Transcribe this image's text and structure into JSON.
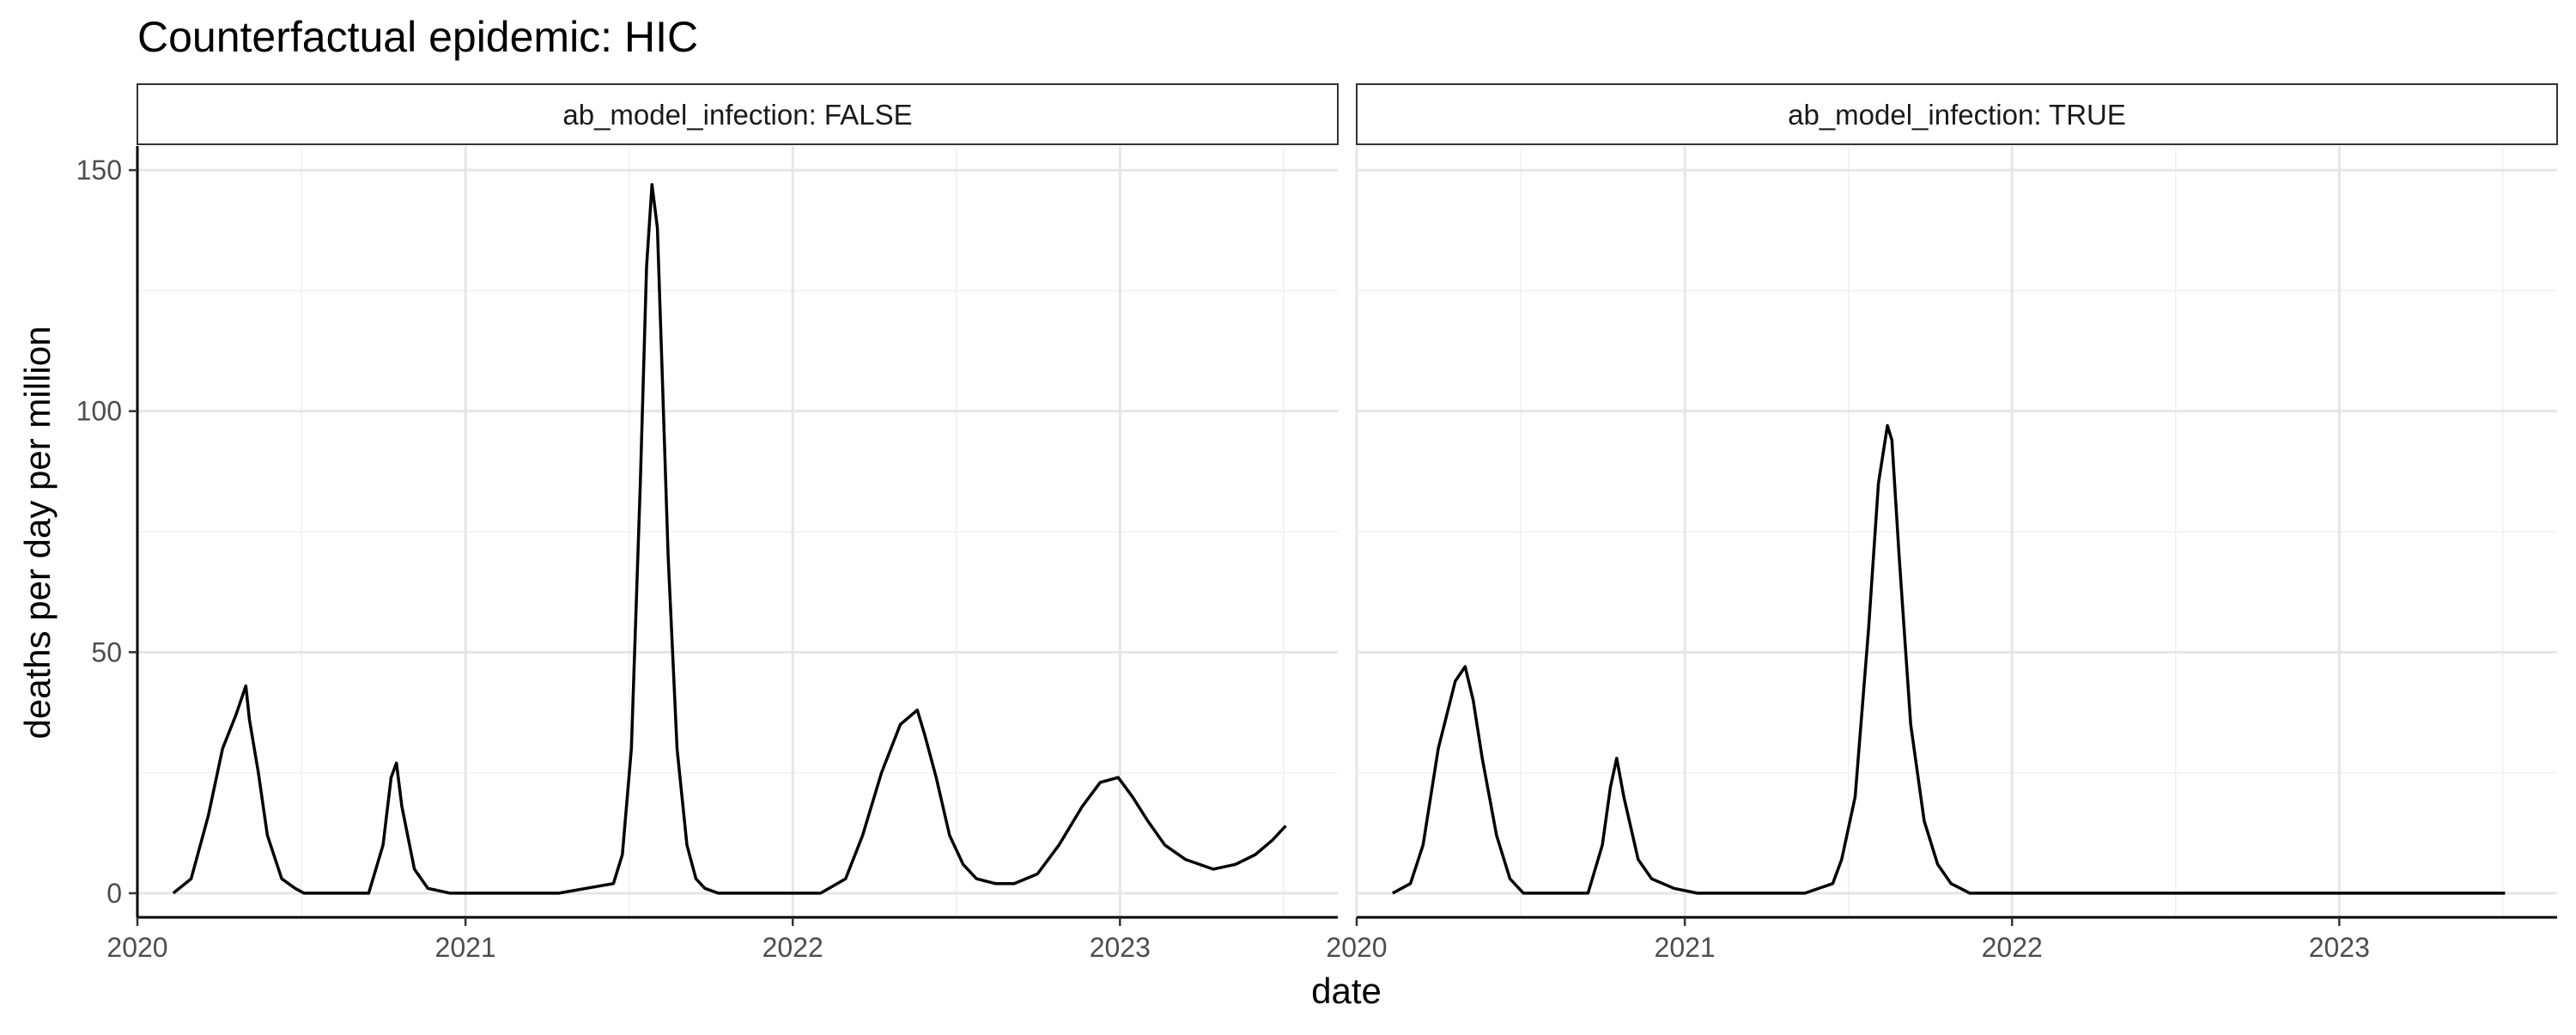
{
  "chart_data": {
    "type": "line",
    "title": "Counterfactual epidemic: HIC",
    "xlabel": "date",
    "ylabel": "deaths per day per million",
    "xlim": [
      "2020-01-01",
      "2023-09-01"
    ],
    "ylim": [
      -5,
      155
    ],
    "x_ticks": [
      "2020-01-01",
      "2021-01-01",
      "2022-01-01",
      "2023-01-01"
    ],
    "x_tick_labels": [
      "2020",
      "2021",
      "2022",
      "2023"
    ],
    "y_ticks": [
      0,
      50,
      100,
      150
    ],
    "y_tick_labels": [
      "0",
      "50",
      "100",
      "150"
    ],
    "grid": true,
    "line_color": "#000000",
    "facets": [
      {
        "strip_label": "ab_model_infection: FALSE",
        "x": [
          "2020-02-10",
          "2020-03-01",
          "2020-03-20",
          "2020-04-05",
          "2020-04-20",
          "2020-05-01",
          "2020-05-05",
          "2020-05-15",
          "2020-05-25",
          "2020-06-10",
          "2020-06-25",
          "2020-07-05",
          "2020-09-15",
          "2020-10-01",
          "2020-10-10",
          "2020-10-16",
          "2020-10-22",
          "2020-11-05",
          "2020-11-20",
          "2020-12-15",
          "2021-01-15",
          "2021-02-15",
          "2021-04-15",
          "2021-06-15",
          "2021-06-25",
          "2021-07-05",
          "2021-07-15",
          "2021-07-22",
          "2021-07-28",
          "2021-08-03",
          "2021-08-08",
          "2021-08-15",
          "2021-08-25",
          "2021-09-05",
          "2021-09-15",
          "2021-09-25",
          "2021-10-10",
          "2021-11-01",
          "2021-12-01",
          "2022-02-01",
          "2022-03-01",
          "2022-03-20",
          "2022-04-10",
          "2022-05-01",
          "2022-05-20",
          "2022-05-28",
          "2022-06-10",
          "2022-06-25",
          "2022-07-10",
          "2022-07-25",
          "2022-08-15",
          "2022-09-05",
          "2022-10-01",
          "2022-10-25",
          "2022-11-20",
          "2022-12-10",
          "2022-12-30",
          "2023-01-15",
          "2023-02-01",
          "2023-02-20",
          "2023-03-15",
          "2023-04-15",
          "2023-05-10",
          "2023-06-01",
          "2023-06-20",
          "2023-07-05"
        ],
        "y": [
          0,
          3,
          16,
          30,
          37,
          43,
          36,
          25,
          12,
          3,
          1,
          0,
          0,
          10,
          24,
          27,
          18,
          5,
          1,
          0,
          0,
          0,
          0,
          2,
          8,
          30,
          85,
          130,
          147,
          138,
          110,
          70,
          30,
          10,
          3,
          1,
          0,
          0,
          0,
          0,
          3,
          12,
          25,
          35,
          38,
          33,
          24,
          12,
          6,
          3,
          2,
          2,
          4,
          10,
          18,
          23,
          24,
          20,
          15,
          10,
          7,
          5,
          6,
          8,
          11,
          14
        ]
      },
      {
        "strip_label": "ab_model_infection: TRUE",
        "x": [
          "2020-02-10",
          "2020-03-01",
          "2020-03-15",
          "2020-04-01",
          "2020-04-20",
          "2020-05-01",
          "2020-05-10",
          "2020-05-20",
          "2020-06-05",
          "2020-06-20",
          "2020-07-05",
          "2020-09-15",
          "2020-10-01",
          "2020-10-10",
          "2020-10-17",
          "2020-10-25",
          "2020-11-10",
          "2020-11-25",
          "2020-12-20",
          "2021-01-15",
          "2021-03-15",
          "2021-05-15",
          "2021-06-15",
          "2021-06-25",
          "2021-07-10",
          "2021-07-25",
          "2021-08-05",
          "2021-08-15",
          "2021-08-20",
          "2021-08-28",
          "2021-09-10",
          "2021-09-25",
          "2021-10-10",
          "2021-10-25",
          "2021-11-15",
          "2021-12-10",
          "2022-06-01",
          "2023-01-01",
          "2023-07-05"
        ],
        "y": [
          0,
          2,
          10,
          30,
          44,
          47,
          40,
          28,
          12,
          3,
          0,
          0,
          10,
          22,
          28,
          20,
          7,
          3,
          1,
          0,
          0,
          0,
          2,
          7,
          20,
          55,
          85,
          97,
          94,
          70,
          35,
          15,
          6,
          2,
          0,
          0,
          0,
          0,
          0
        ]
      }
    ]
  }
}
